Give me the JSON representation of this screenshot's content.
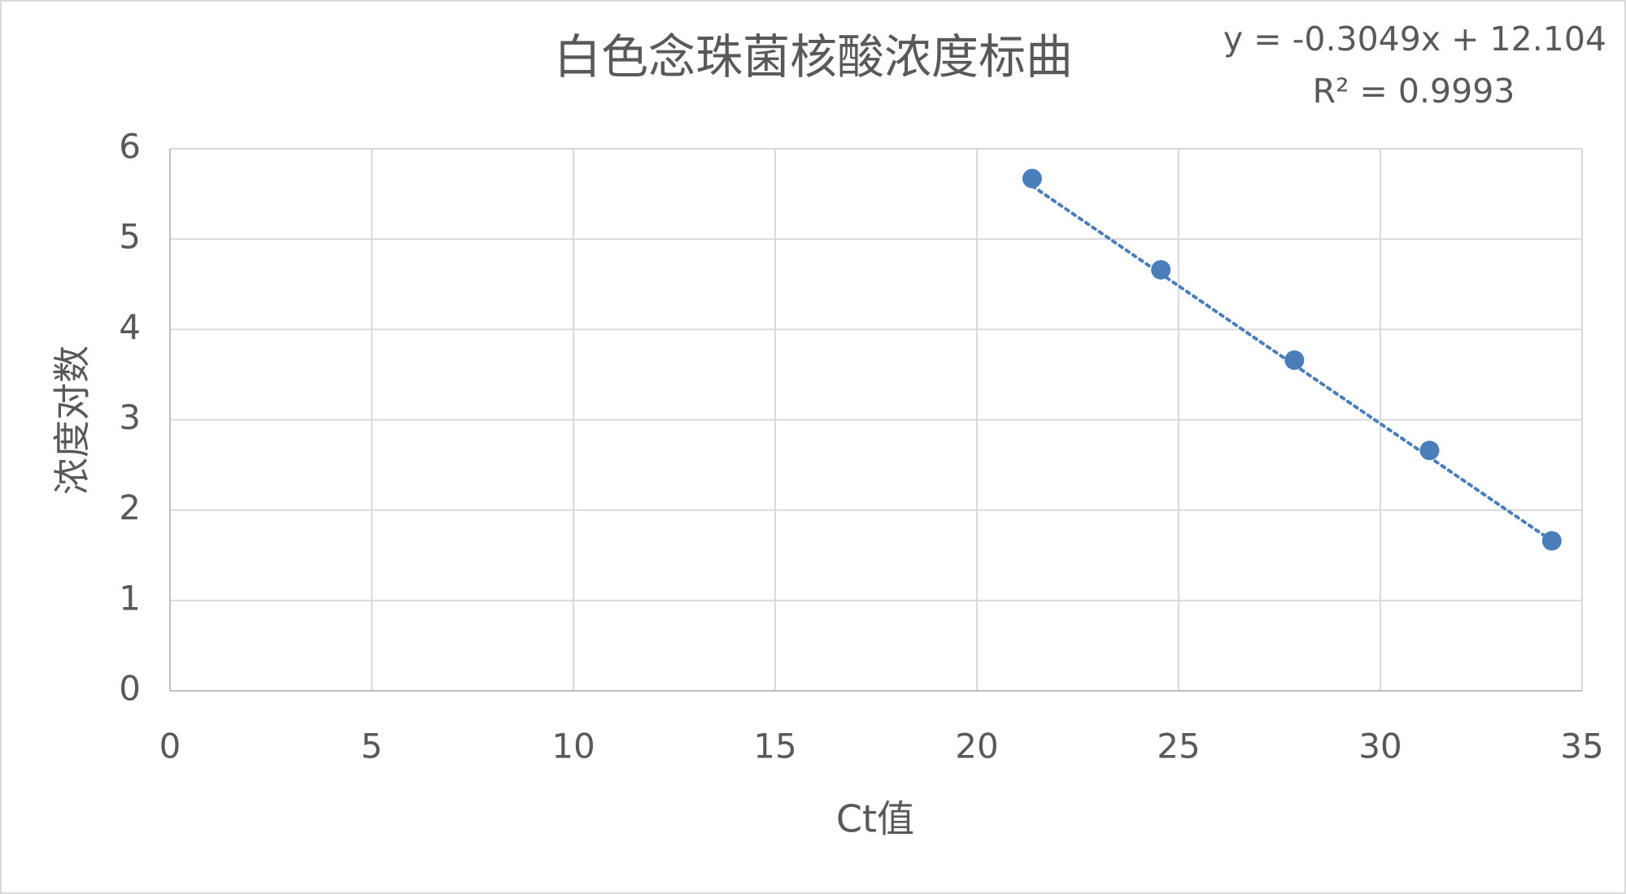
{
  "chart_data": {
    "type": "scatter",
    "title": "白色念珠菌核酸浓度标曲",
    "x_label": "Ct值",
    "y_label": "浓度对数",
    "series": [
      {
        "color": "#4a7ebb",
        "x": [
          21.37,
          24.56,
          27.87,
          31.22,
          34.25
        ],
        "values": [
          5.67,
          4.66,
          3.66,
          2.66,
          1.66
        ]
      }
    ],
    "trendline": {
      "equation": "y = -0.3049x + 12.104",
      "slope": -0.3049,
      "intercept": 12.104,
      "r_squared": "R² = 0.9993",
      "color": "#4a7ebb"
    },
    "xlim": [
      0,
      35
    ],
    "xticks": [
      0,
      5,
      10,
      15,
      20,
      25,
      30,
      35
    ],
    "ylim": [
      0,
      6
    ],
    "yticks": [
      0,
      1,
      2,
      3,
      4,
      5,
      6
    ],
    "grid": true
  }
}
